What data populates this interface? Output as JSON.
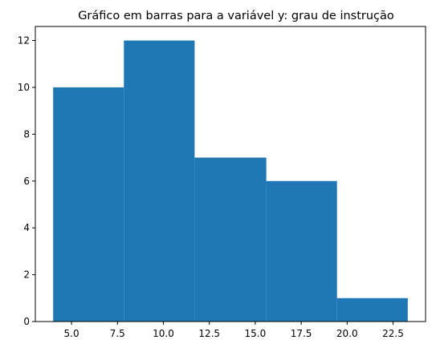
{
  "chart_data": {
    "type": "bar",
    "title": "Gráfico em barras para a variável y: grau de instrução",
    "xlabel": "",
    "ylabel": "",
    "bins": [
      {
        "start": 4.0,
        "end": 7.85,
        "value": 10
      },
      {
        "start": 7.85,
        "end": 11.7,
        "value": 12
      },
      {
        "start": 11.7,
        "end": 15.6,
        "value": 7
      },
      {
        "start": 15.6,
        "end": 19.45,
        "value": 6
      },
      {
        "start": 19.45,
        "end": 23.3,
        "value": 1
      }
    ],
    "xlim": [
      3.03,
      24.27
    ],
    "ylim": [
      0,
      12.6
    ],
    "xticks": [
      5.0,
      7.5,
      10.0,
      12.5,
      15.0,
      17.5,
      20.0,
      22.5
    ],
    "xtick_labels": [
      "5.0",
      "7.5",
      "10.0",
      "12.5",
      "15.0",
      "17.5",
      "20.0",
      "22.5"
    ],
    "yticks": [
      0,
      2,
      4,
      6,
      8,
      10,
      12
    ],
    "ytick_labels": [
      "0",
      "2",
      "4",
      "6",
      "8",
      "10",
      "12"
    ],
    "bar_color": "#1f77b4",
    "grid": false,
    "legend": "none"
  }
}
